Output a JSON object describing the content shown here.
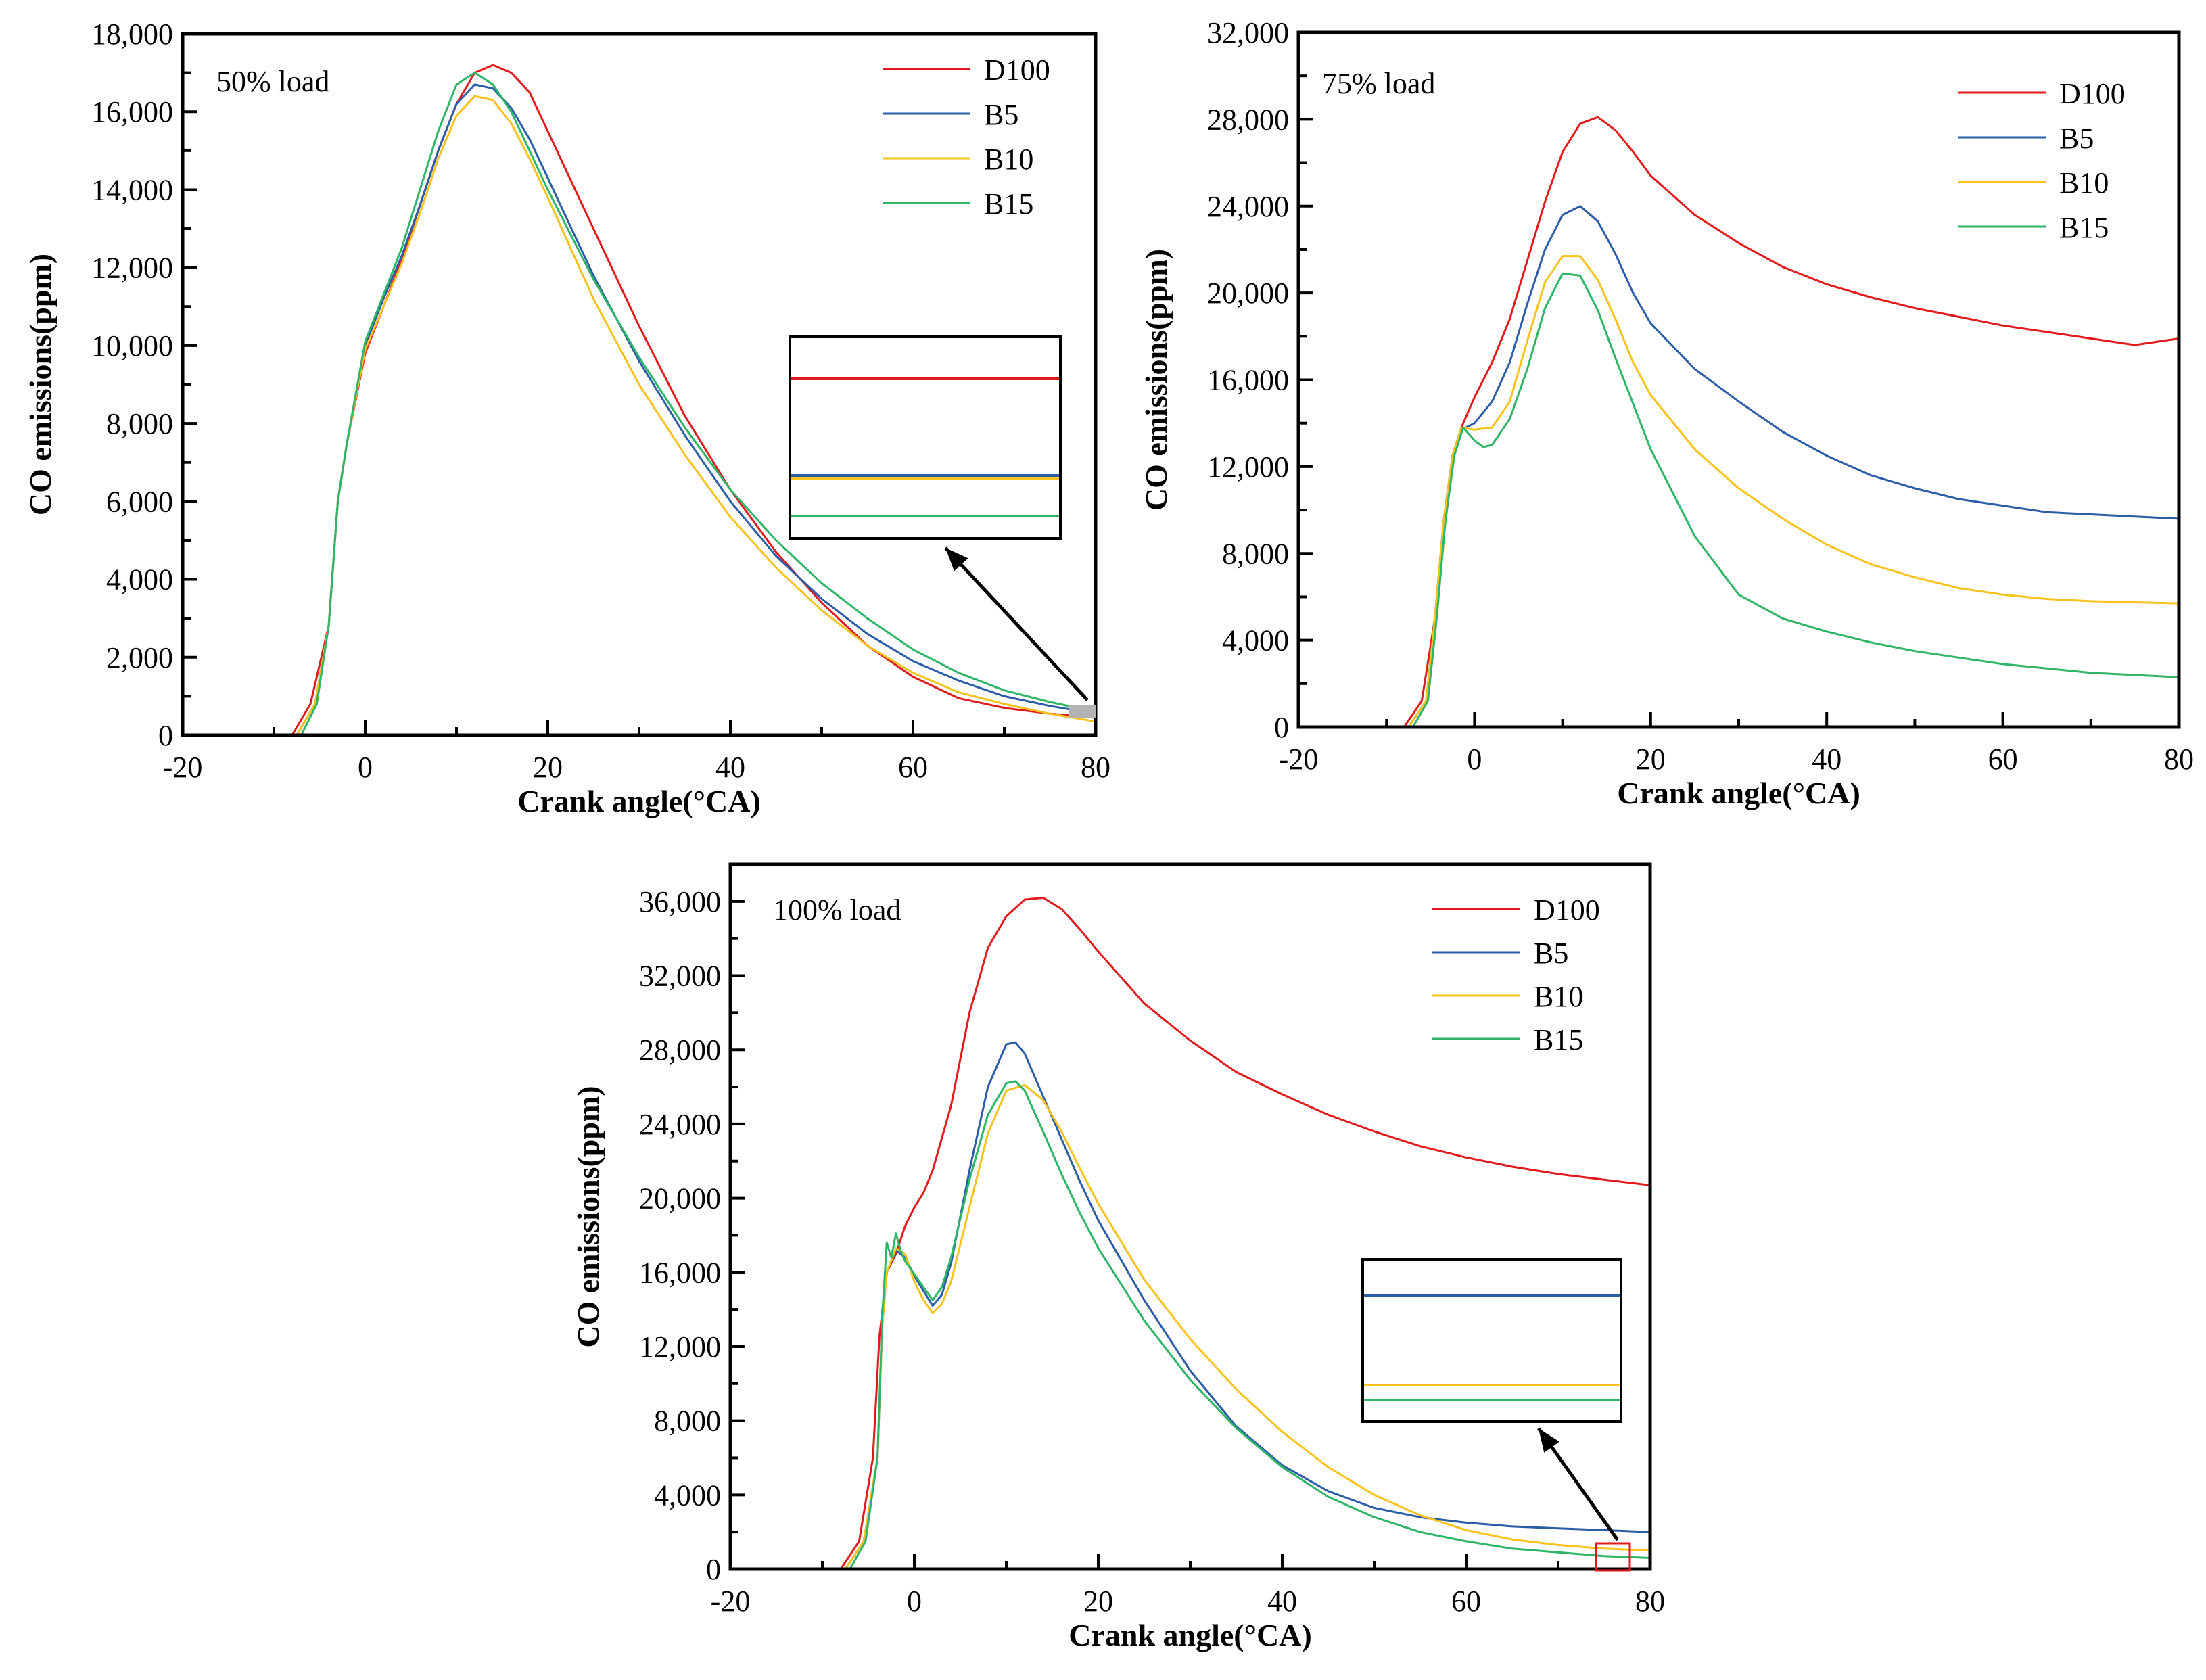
{
  "colors": {
    "D100": "#e31a1c",
    "B5": "#2b5ca8",
    "B10": "#f7c21c",
    "B15": "#2fb567",
    "axis": "#000000",
    "zoom_marker_gray": "#b3b3b3",
    "zoom_marker_red": "#e31a1c"
  },
  "chart_data": [
    {
      "type": "line",
      "annotation": "50% load",
      "xlabel": "Crank angle(°CA)",
      "ylabel": "CO emissions(ppm)",
      "xlim": [
        -20,
        80
      ],
      "ylim": [
        0,
        18000
      ],
      "xticks": [
        -20,
        0,
        20,
        40,
        60,
        80
      ],
      "yticks": [
        0,
        2000,
        4000,
        6000,
        8000,
        10000,
        12000,
        14000,
        16000,
        18000
      ],
      "x_tick_labels": [
        "-20",
        "0",
        "20",
        "40",
        "60",
        "80"
      ],
      "y_tick_labels": [
        "0",
        "2,000",
        "4,000",
        "6,000",
        "8,000",
        "10,000",
        "12,000",
        "14,000",
        "16,000",
        "18,000"
      ],
      "legend": [
        "D100",
        "B5",
        "B10",
        "B15"
      ],
      "inset": {
        "source_x": [
          77,
          80
        ],
        "series_order_top_to_bottom": [
          "D100",
          "B5",
          "B10",
          "B15"
        ]
      },
      "series": [
        {
          "name": "D100",
          "x": [
            -20,
            -8,
            -6,
            -4,
            -3,
            -2,
            0,
            2,
            4,
            6,
            8,
            10,
            12,
            14,
            16,
            18,
            20,
            25,
            30,
            35,
            40,
            45,
            50,
            55,
            60,
            65,
            70,
            75,
            80
          ],
          "y": [
            0,
            0,
            800,
            2800,
            6000,
            7500,
            9800,
            11000,
            12200,
            13600,
            15000,
            16200,
            17000,
            17200,
            17000,
            16500,
            15500,
            13000,
            10500,
            8200,
            6300,
            4700,
            3400,
            2300,
            1500,
            950,
            700,
            550,
            450
          ]
        },
        {
          "name": "B5",
          "x": [
            -20,
            -7.5,
            -5.5,
            -4,
            -3,
            -2,
            0,
            2,
            4,
            6,
            8,
            10,
            12,
            14,
            16,
            18,
            20,
            25,
            30,
            35,
            40,
            45,
            50,
            55,
            60,
            65,
            70,
            75,
            80
          ],
          "y": [
            0,
            0,
            800,
            2800,
            6000,
            7500,
            10000,
            11200,
            12300,
            13600,
            15000,
            16200,
            16700,
            16600,
            16100,
            15300,
            14300,
            11800,
            9600,
            7700,
            6000,
            4600,
            3500,
            2600,
            1900,
            1400,
            1000,
            750,
            550
          ]
        },
        {
          "name": "B10",
          "x": [
            -20,
            -7.5,
            -5.5,
            -4,
            -3,
            -2,
            0,
            2,
            4,
            6,
            8,
            10,
            12,
            14,
            16,
            18,
            20,
            25,
            30,
            35,
            40,
            45,
            50,
            55,
            60,
            65,
            70,
            75,
            80
          ],
          "y": [
            0,
            0,
            800,
            2800,
            6000,
            7500,
            9900,
            11000,
            12100,
            13400,
            14800,
            15900,
            16400,
            16300,
            15700,
            14800,
            13800,
            11200,
            9000,
            7200,
            5600,
            4300,
            3200,
            2300,
            1600,
            1100,
            800,
            550,
            350
          ]
        },
        {
          "name": "B15",
          "x": [
            -20,
            -7,
            -5.3,
            -4,
            -3,
            -2,
            0,
            2,
            4,
            6,
            8,
            10,
            12,
            14,
            16,
            18,
            20,
            25,
            30,
            35,
            40,
            45,
            50,
            55,
            60,
            65,
            70,
            75,
            80
          ],
          "y": [
            0,
            0,
            800,
            2800,
            6000,
            7500,
            10100,
            11300,
            12500,
            14000,
            15500,
            16700,
            17000,
            16700,
            16000,
            15000,
            14000,
            11700,
            9700,
            7900,
            6300,
            5000,
            3900,
            3000,
            2200,
            1600,
            1150,
            850,
            600
          ]
        }
      ]
    },
    {
      "type": "line",
      "annotation": "75% load",
      "xlabel": "Crank angle(°CA)",
      "ylabel": "CO emissions(ppm)",
      "xlim": [
        -20,
        80
      ],
      "ylim": [
        0,
        32000
      ],
      "xticks": [
        -20,
        0,
        20,
        40,
        60,
        80
      ],
      "yticks": [
        0,
        4000,
        8000,
        12000,
        16000,
        20000,
        24000,
        28000,
        32000
      ],
      "x_tick_labels": [
        "-20",
        "0",
        "20",
        "40",
        "60",
        "80"
      ],
      "y_tick_labels": [
        "0",
        "4,000",
        "8,000",
        "12,000",
        "16,000",
        "20,000",
        "24,000",
        "28,000",
        "32,000"
      ],
      "legend": [
        "D100",
        "B5",
        "B10",
        "B15"
      ],
      "series": [
        {
          "name": "D100",
          "x": [
            -20,
            -8,
            -6,
            -4.5,
            -3.5,
            -2.5,
            -1.5,
            0,
            2,
            4,
            6,
            8,
            10,
            12,
            14,
            16,
            18,
            20,
            25,
            30,
            35,
            40,
            45,
            50,
            55,
            60,
            65,
            70,
            75,
            80
          ],
          "y": [
            0,
            0,
            1200,
            5000,
            9500,
            12500,
            13800,
            15200,
            16800,
            18800,
            21500,
            24200,
            26500,
            27800,
            28100,
            27500,
            26500,
            25400,
            23600,
            22300,
            21200,
            20400,
            19800,
            19300,
            18900,
            18500,
            18200,
            17900,
            17600,
            17900
          ]
        },
        {
          "name": "B5",
          "x": [
            -20,
            -7.5,
            -5.5,
            -4.5,
            -3.5,
            -2.5,
            -1.5,
            0,
            2,
            4,
            6,
            8,
            10,
            12,
            14,
            16,
            18,
            20,
            25,
            30,
            35,
            40,
            45,
            50,
            55,
            60,
            65,
            70,
            75,
            80
          ],
          "y": [
            0,
            0,
            1200,
            5000,
            9500,
            12500,
            13700,
            14000,
            15000,
            16800,
            19500,
            22000,
            23600,
            24000,
            23300,
            21800,
            20000,
            18600,
            16500,
            15000,
            13600,
            12500,
            11600,
            11000,
            10500,
            10200,
            9900,
            9800,
            9700,
            9600
          ]
        },
        {
          "name": "B10",
          "x": [
            -20,
            -7.5,
            -5.5,
            -4.5,
            -3.5,
            -2.5,
            -1.5,
            0,
            2,
            4,
            6,
            8,
            10,
            12,
            14,
            16,
            18,
            20,
            25,
            30,
            35,
            40,
            45,
            50,
            55,
            60,
            65,
            70,
            75,
            80
          ],
          "y": [
            0,
            0,
            1200,
            5000,
            9500,
            12500,
            13800,
            13700,
            13800,
            15000,
            17800,
            20500,
            21700,
            21700,
            20600,
            18800,
            16800,
            15300,
            12800,
            11000,
            9600,
            8400,
            7500,
            6900,
            6400,
            6100,
            5900,
            5800,
            5750,
            5700
          ]
        },
        {
          "name": "B15",
          "x": [
            -20,
            -7,
            -5.3,
            -4.3,
            -3.3,
            -2.3,
            -1.3,
            0,
            1,
            2,
            4,
            6,
            8,
            10,
            12,
            14,
            16,
            18,
            20,
            25,
            30,
            35,
            40,
            45,
            50,
            55,
            60,
            65,
            70,
            75,
            80
          ],
          "y": [
            0,
            0,
            1200,
            5000,
            9500,
            12500,
            13800,
            13200,
            12900,
            13000,
            14200,
            16500,
            19300,
            20900,
            20800,
            19200,
            17000,
            14900,
            12800,
            8800,
            6100,
            5000,
            4400,
            3900,
            3500,
            3200,
            2900,
            2700,
            2500,
            2400,
            2300
          ]
        }
      ]
    },
    {
      "type": "line",
      "annotation": "100% load",
      "xlabel": "Crank angle(°CA)",
      "ylabel": "CO emissions(ppm)",
      "xlim": [
        -20,
        80
      ],
      "ylim": [
        0,
        38000
      ],
      "xticks": [
        -20,
        0,
        20,
        40,
        60,
        80
      ],
      "yticks": [
        0,
        4000,
        8000,
        12000,
        16000,
        20000,
        24000,
        28000,
        32000,
        36000
      ],
      "x_tick_labels": [
        "-20",
        "0",
        "20",
        "40",
        "60",
        "80"
      ],
      "y_tick_labels": [
        "0",
        "4,000",
        "8,000",
        "12,000",
        "16,000",
        "20,000",
        "24,000",
        "28,000",
        "32,000",
        "36,000"
      ],
      "legend": [
        "D100",
        "B5",
        "B10",
        "B15"
      ],
      "inset": {
        "source_x": [
          74,
          78
        ],
        "series_order_top_to_bottom": [
          "B5",
          "B10",
          "B15"
        ]
      },
      "series": [
        {
          "name": "D100",
          "x": [
            -20,
            -8,
            -6,
            -4.5,
            -3.8,
            -3,
            -2,
            -1,
            0,
            1,
            2,
            4,
            6,
            8,
            10,
            12,
            14,
            16,
            18,
            20,
            25,
            30,
            35,
            40,
            45,
            50,
            55,
            60,
            65,
            70,
            75,
            80
          ],
          "y": [
            0,
            0,
            1500,
            6000,
            12500,
            16000,
            17000,
            18500,
            19500,
            20300,
            21500,
            25000,
            30000,
            33500,
            35200,
            36100,
            36200,
            35600,
            34500,
            33300,
            30500,
            28500,
            26800,
            25600,
            24500,
            23600,
            22800,
            22200,
            21700,
            21300,
            21000,
            20700
          ]
        },
        {
          "name": "B5",
          "x": [
            -20,
            -7.5,
            -5.5,
            -4,
            -3.5,
            -3,
            -2,
            -1,
            0,
            1,
            2,
            3,
            4,
            6,
            8,
            10,
            11,
            12,
            14,
            16,
            18,
            20,
            25,
            30,
            35,
            40,
            45,
            50,
            55,
            60,
            65,
            70,
            75,
            80
          ],
          "y": [
            0,
            0,
            1500,
            6000,
            13000,
            16000,
            17200,
            16800,
            15800,
            15000,
            14200,
            14800,
            16500,
            21500,
            26000,
            28300,
            28400,
            27800,
            25500,
            23200,
            20900,
            18800,
            14500,
            10700,
            7700,
            5600,
            4200,
            3300,
            2800,
            2500,
            2300,
            2200,
            2100,
            2000
          ]
        },
        {
          "name": "B10",
          "x": [
            -20,
            -7.5,
            -5.5,
            -4,
            -3.5,
            -3,
            -2,
            -1,
            0,
            1,
            2,
            3,
            4,
            6,
            8,
            10,
            12,
            14,
            16,
            18,
            20,
            25,
            30,
            35,
            40,
            45,
            50,
            55,
            60,
            65,
            70,
            75,
            80
          ],
          "y": [
            0,
            0,
            1500,
            6000,
            13000,
            16000,
            17300,
            17000,
            15500,
            14500,
            13800,
            14300,
            15500,
            19500,
            23500,
            25800,
            26100,
            25300,
            23600,
            21600,
            19700,
            15600,
            12400,
            9700,
            7400,
            5500,
            4000,
            2900,
            2100,
            1600,
            1300,
            1100,
            1000
          ]
        },
        {
          "name": "B15",
          "x": [
            -20,
            -7,
            -5.3,
            -4,
            -3.5,
            -3,
            -2.5,
            -2,
            -1.5,
            -1,
            0,
            1,
            2,
            3,
            4,
            6,
            8,
            10,
            11,
            12,
            14,
            16,
            18,
            20,
            25,
            30,
            35,
            40,
            45,
            50,
            55,
            60,
            65,
            70,
            75,
            80
          ],
          "y": [
            0,
            0,
            1500,
            6000,
            13500,
            17600,
            16800,
            18100,
            17200,
            16600,
            15900,
            15200,
            14500,
            15200,
            16800,
            21000,
            24500,
            26200,
            26300,
            25800,
            23600,
            21300,
            19200,
            17300,
            13400,
            10200,
            7600,
            5500,
            3900,
            2800,
            2000,
            1500,
            1100,
            900,
            700,
            600
          ]
        }
      ]
    }
  ]
}
